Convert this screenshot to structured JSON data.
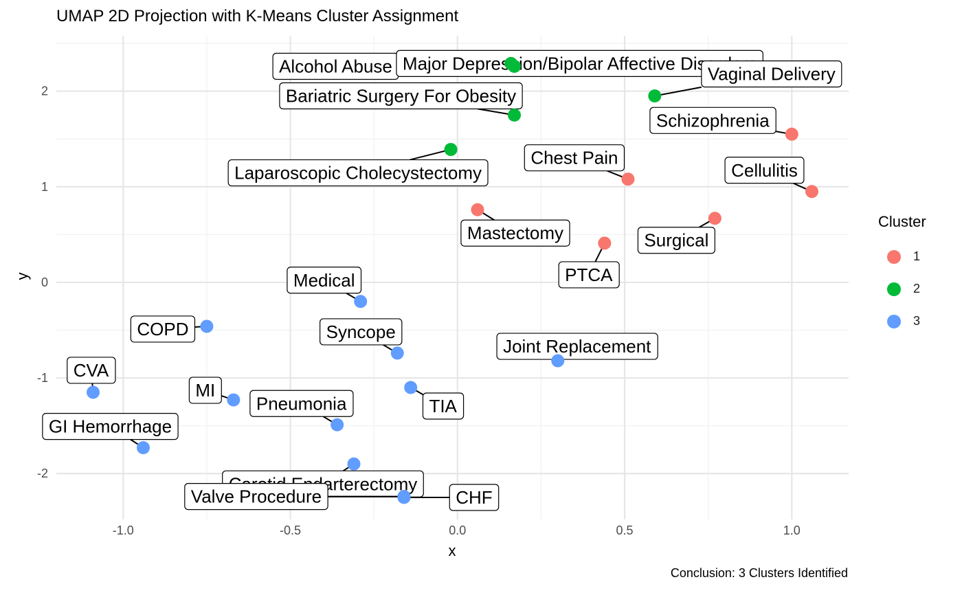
{
  "chart_data": {
    "type": "scatter",
    "title": "UMAP 2D Projection with K-Means Cluster Assignment",
    "caption": "Conclusion: 3 Clusters Identified",
    "xlabel": "x",
    "ylabel": "y",
    "xlim": [
      -1.2,
      1.17
    ],
    "ylim": [
      -2.48,
      2.58
    ],
    "xticks": [
      -1.0,
      -0.5,
      0.0,
      0.5,
      1.0
    ],
    "xtick_labels": [
      "-1.0",
      "-0.5",
      "0.0",
      "0.5",
      "1.0"
    ],
    "yticks": [
      -2,
      -1,
      0,
      1,
      2
    ],
    "ytick_labels": [
      "-2",
      "-1",
      "0",
      "1",
      "2"
    ],
    "grid": true,
    "legend": {
      "title": "Cluster",
      "position": "right",
      "entries": [
        {
          "label": "1",
          "color": "#F8766D"
        },
        {
          "label": "2",
          "color": "#00BA38"
        },
        {
          "label": "3",
          "color": "#619CFF"
        }
      ]
    },
    "points": [
      {
        "label": "Alcohol Abuse",
        "x": 0.17,
        "y": 2.26,
        "cluster": "2"
      },
      {
        "label": "Major Depression/Bipolar Affective Disorders",
        "x": 0.16,
        "y": 2.29,
        "cluster": "2"
      },
      {
        "label": "Vaginal Delivery",
        "x": 0.59,
        "y": 1.95,
        "cluster": "2"
      },
      {
        "label": "Bariatric Surgery For Obesity",
        "x": 0.17,
        "y": 1.75,
        "cluster": "2"
      },
      {
        "label": "Laparoscopic Cholecystectomy",
        "x": -0.02,
        "y": 1.39,
        "cluster": "2"
      },
      {
        "label": "Schizophrenia",
        "x": 1.0,
        "y": 1.55,
        "cluster": "1"
      },
      {
        "label": "Chest Pain",
        "x": 0.51,
        "y": 1.08,
        "cluster": "1"
      },
      {
        "label": "Cellulitis",
        "x": 1.06,
        "y": 0.95,
        "cluster": "1"
      },
      {
        "label": "Mastectomy",
        "x": 0.06,
        "y": 0.76,
        "cluster": "1"
      },
      {
        "label": "Surgical",
        "x": 0.77,
        "y": 0.67,
        "cluster": "1"
      },
      {
        "label": "PTCA",
        "x": 0.44,
        "y": 0.41,
        "cluster": "1"
      },
      {
        "label": "Medical",
        "x": -0.29,
        "y": -0.2,
        "cluster": "3"
      },
      {
        "label": "COPD",
        "x": -0.75,
        "y": -0.46,
        "cluster": "3"
      },
      {
        "label": "Syncope",
        "x": -0.18,
        "y": -0.74,
        "cluster": "3"
      },
      {
        "label": "Joint Replacement",
        "x": 0.3,
        "y": -0.82,
        "cluster": "3"
      },
      {
        "label": "TIA",
        "x": -0.14,
        "y": -1.1,
        "cluster": "3"
      },
      {
        "label": "CVA",
        "x": -1.09,
        "y": -1.15,
        "cluster": "3"
      },
      {
        "label": "MI",
        "x": -0.67,
        "y": -1.23,
        "cluster": "3"
      },
      {
        "label": "Pneumonia",
        "x": -0.36,
        "y": -1.49,
        "cluster": "3"
      },
      {
        "label": "GI Hemorrhage",
        "x": -0.94,
        "y": -1.73,
        "cluster": "3"
      },
      {
        "label": "Carotid Endarterectomy",
        "x": -0.31,
        "y": -1.9,
        "cluster": "3"
      },
      {
        "label": "Valve Procedure",
        "x": -0.16,
        "y": -2.24,
        "cluster": "3"
      },
      {
        "label": "CHF",
        "x": -0.16,
        "y": -2.25,
        "cluster": "3"
      }
    ]
  }
}
